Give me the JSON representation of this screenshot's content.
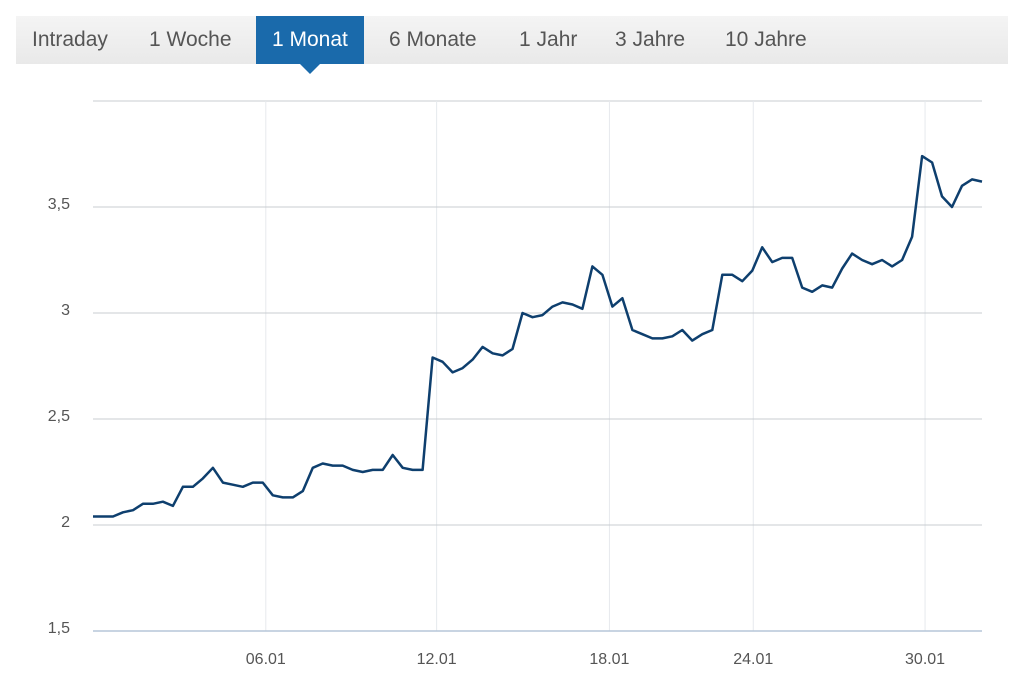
{
  "tabs": {
    "items": [
      "Intraday",
      "1 Woche",
      "1 Monat",
      "6 Monate",
      "1 Jahr",
      "3 Jahre",
      "10 Jahre"
    ],
    "selected": 2
  },
  "chart_data": {
    "type": "line",
    "color": "#0e3f6e",
    "grid": true,
    "values": [
      2.04,
      2.04,
      2.04,
      2.06,
      2.07,
      2.1,
      2.1,
      2.11,
      2.09,
      2.18,
      2.18,
      2.22,
      2.27,
      2.2,
      2.19,
      2.18,
      2.2,
      2.2,
      2.14,
      2.13,
      2.13,
      2.16,
      2.27,
      2.29,
      2.28,
      2.28,
      2.26,
      2.25,
      2.26,
      2.26,
      2.33,
      2.27,
      2.26,
      2.26,
      2.79,
      2.77,
      2.72,
      2.74,
      2.78,
      2.84,
      2.81,
      2.8,
      2.83,
      3.0,
      2.98,
      2.99,
      3.03,
      3.05,
      3.04,
      3.02,
      3.22,
      3.18,
      3.03,
      3.07,
      2.92,
      2.9,
      2.88,
      2.88,
      2.89,
      2.92,
      2.87,
      2.9,
      2.92,
      3.18,
      3.18,
      3.15,
      3.2,
      3.31,
      3.24,
      3.26,
      3.26,
      3.12,
      3.1,
      3.13,
      3.12,
      3.21,
      3.28,
      3.25,
      3.23,
      3.25,
      3.22,
      3.25,
      3.36,
      3.74,
      3.71,
      3.55,
      3.5,
      3.6,
      3.63,
      3.62
    ],
    "xlim": [
      0,
      89
    ],
    "xticks": [
      {
        "value": 17.3,
        "label": "06.01"
      },
      {
        "value": 34.4,
        "label": "12.01"
      },
      {
        "value": 51.7,
        "label": "18.01"
      },
      {
        "value": 66.1,
        "label": "24.01"
      },
      {
        "value": 83.3,
        "label": "30.01"
      }
    ],
    "ylim": [
      1.5,
      4.0
    ],
    "yticks": [
      {
        "value": 1.5,
        "label": "1,5"
      },
      2,
      {
        "value": 2.5,
        "label": "2,5"
      },
      3,
      {
        "value": 3.5,
        "label": "3,5"
      }
    ]
  }
}
